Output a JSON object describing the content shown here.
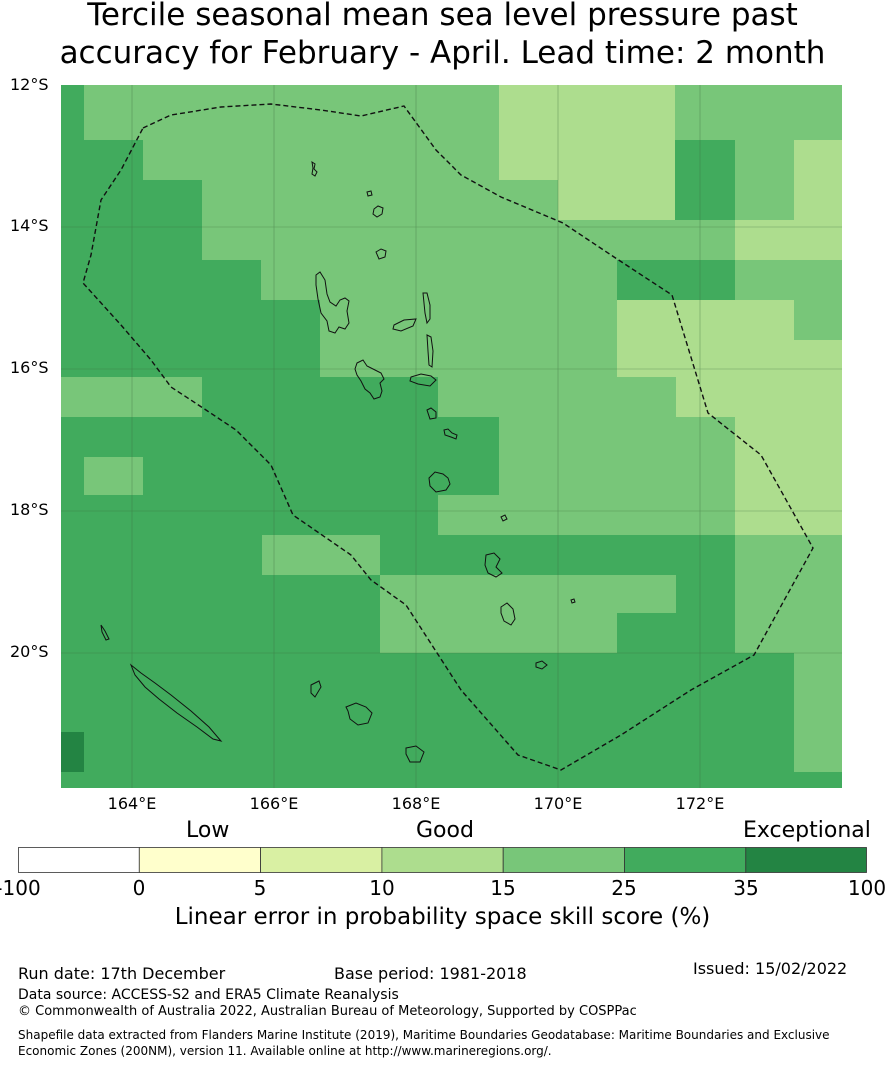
{
  "title": {
    "line1": "Tercile seasonal mean sea level pressure past",
    "line2": "accuracy for February - April. Lead time: 2 month"
  },
  "map": {
    "lat_labels": [
      "12°S",
      "14°S",
      "16°S",
      "18°S",
      "20°S"
    ],
    "lon_labels": [
      "164°E",
      "166°E",
      "168°E",
      "170°E",
      "172°E"
    ],
    "lon_range": [
      163,
      174
    ],
    "lat_range": [
      -21.9,
      -12
    ]
  },
  "colorbar": {
    "categories": [
      "Low",
      "Good",
      "Exceptional"
    ],
    "ticks": [
      "-100",
      "0",
      "5",
      "10",
      "15",
      "25",
      "35",
      "100"
    ],
    "colors": [
      "#ffffff",
      "#ffffcc",
      "#d9f0a3",
      "#addd8e",
      "#78c679",
      "#41ab5d",
      "#238443"
    ],
    "label": "Linear error in probability space skill score (%)"
  },
  "footer": {
    "run_date": "Run date: 17th December",
    "base_period": "Base period: 1981-2018",
    "issued": "Issued: 15/02/2022",
    "data_source": "Data source: ACCESS-S2 and ERA5 Climate Reanalysis",
    "copyright": "© Commonwealth of Australia 2022, Australian Bureau of Meteorology, Supported by COSPPac",
    "shapefile": "Shapefile data extracted from Flanders Marine Institute (2019), Maritime Boundaries Geodatabase: Maritime Boundaries and Exclusive Economic Zones (200NM), version 11. Available online at http://www.marineregions.org/."
  }
}
